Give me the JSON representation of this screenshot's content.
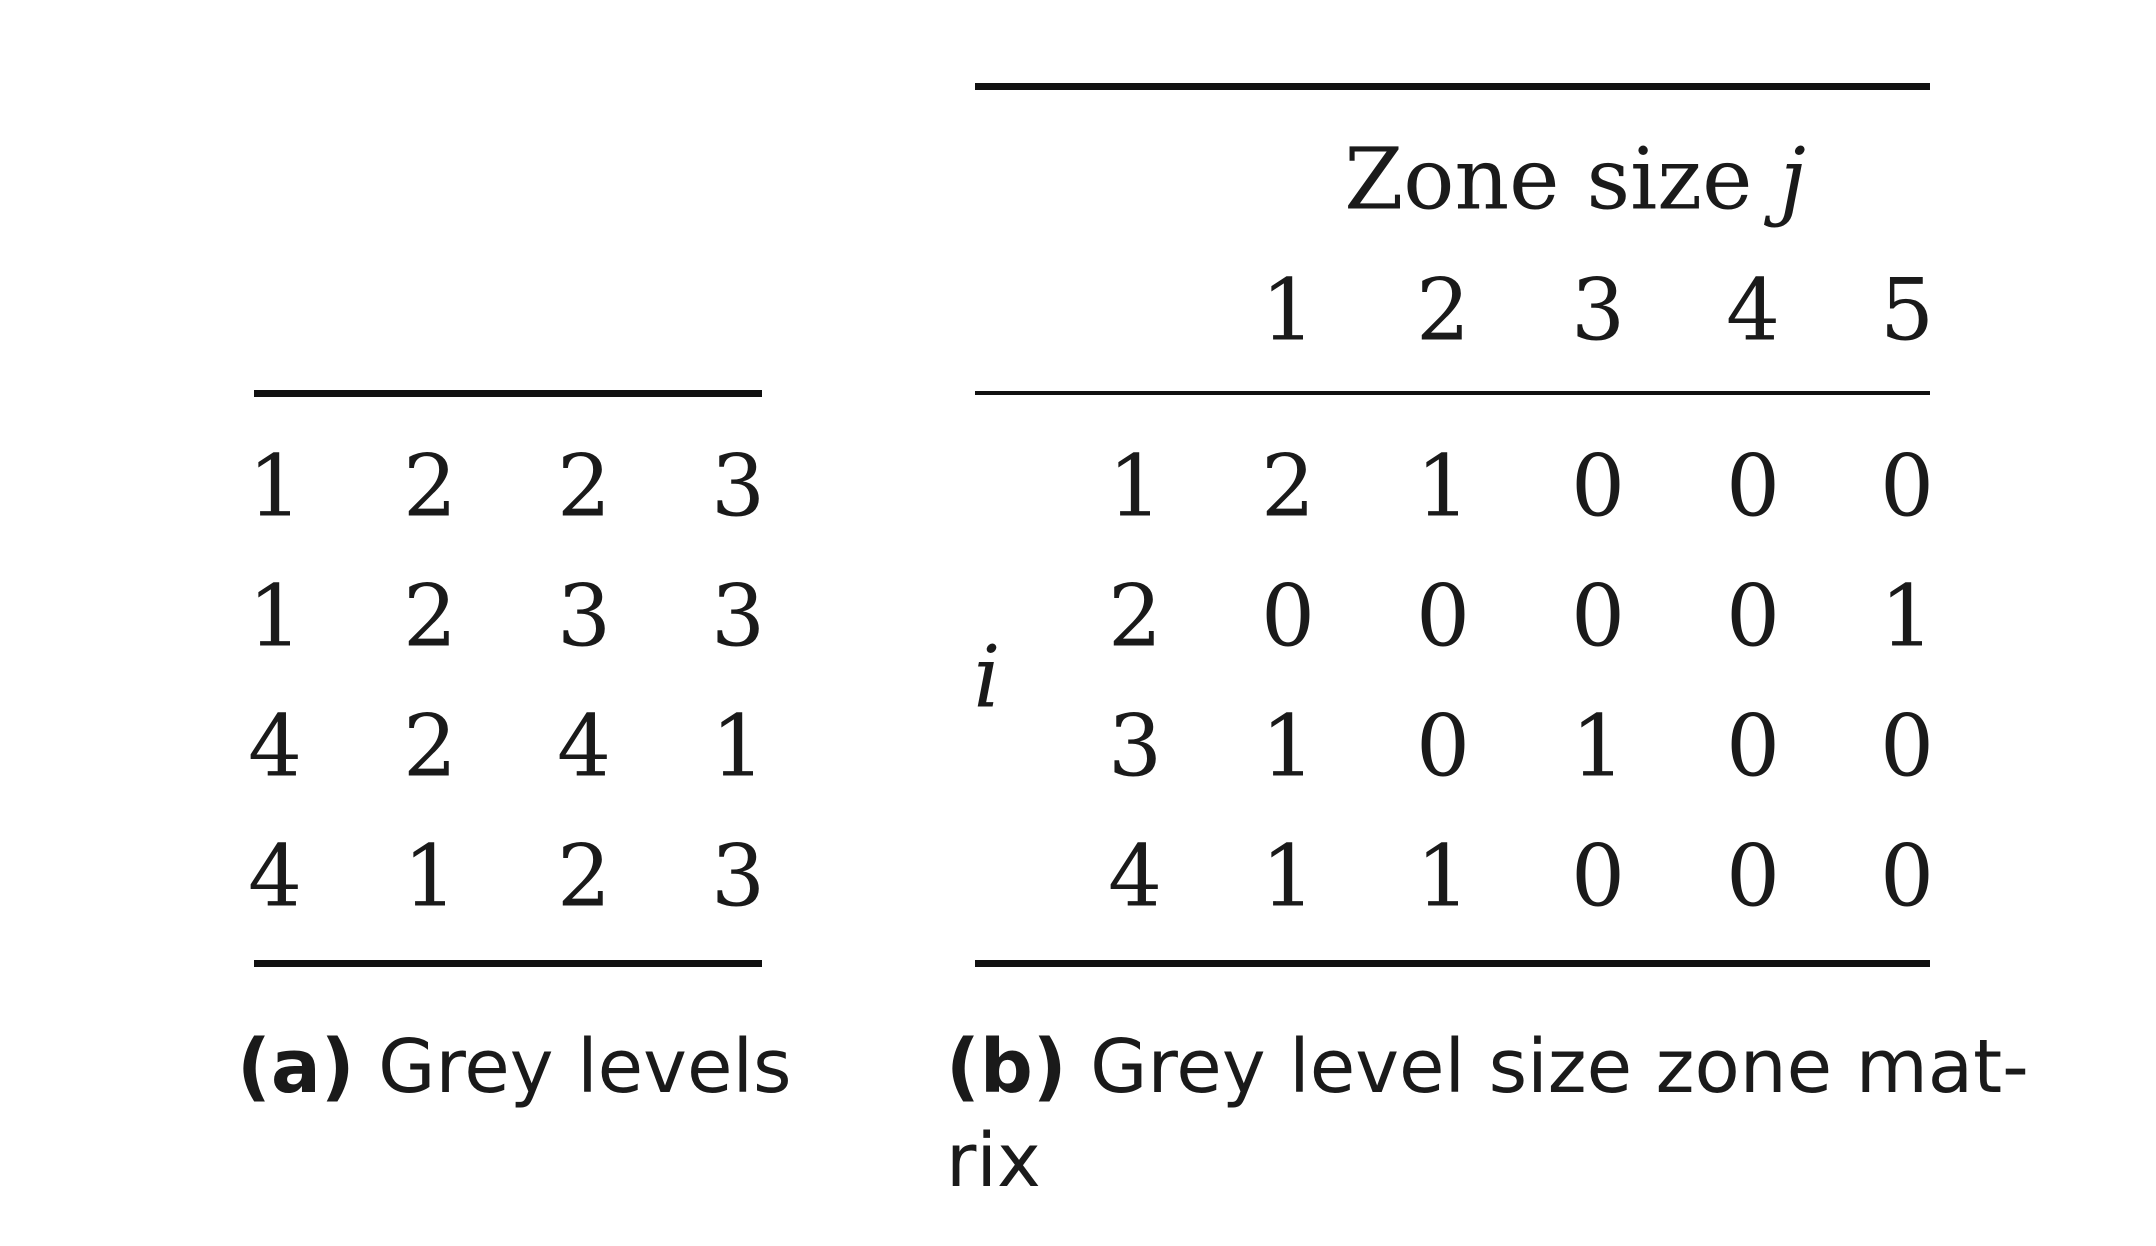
{
  "table_a": {
    "rows": [
      [
        "1",
        "2",
        "2",
        "3"
      ],
      [
        "1",
        "2",
        "3",
        "3"
      ],
      [
        "4",
        "2",
        "4",
        "1"
      ],
      [
        "4",
        "1",
        "2",
        "3"
      ]
    ],
    "caption_tag": "(a)",
    "caption_text": "Grey levels"
  },
  "table_b": {
    "header_title": "Zone size",
    "header_var": "j",
    "col_headers": [
      "1",
      "2",
      "3",
      "4",
      "5"
    ],
    "row_var": "i",
    "row_headers": [
      "1",
      "2",
      "3",
      "4"
    ],
    "rows": [
      [
        "2",
        "1",
        "0",
        "0",
        "0"
      ],
      [
        "0",
        "0",
        "0",
        "0",
        "1"
      ],
      [
        "1",
        "0",
        "1",
        "0",
        "0"
      ],
      [
        "1",
        "1",
        "0",
        "0",
        "0"
      ]
    ],
    "caption_tag": "(b)",
    "caption_line1": "Grey level size zone mat-",
    "caption_line2": "rix"
  }
}
